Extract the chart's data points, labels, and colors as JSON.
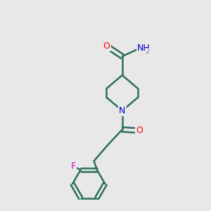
{
  "background_color": "#e8e8e8",
  "bond_color": "#2d6e5e",
  "bond_width": 1.8,
  "atom_colors": {
    "O": "#ff0000",
    "N": "#0000cd",
    "F": "#cc00cc",
    "H": "#888888",
    "C": "#000000"
  },
  "figsize": [
    3.0,
    3.0
  ],
  "dpi": 100,
  "xlim": [
    0,
    10
  ],
  "ylim": [
    0,
    10
  ]
}
